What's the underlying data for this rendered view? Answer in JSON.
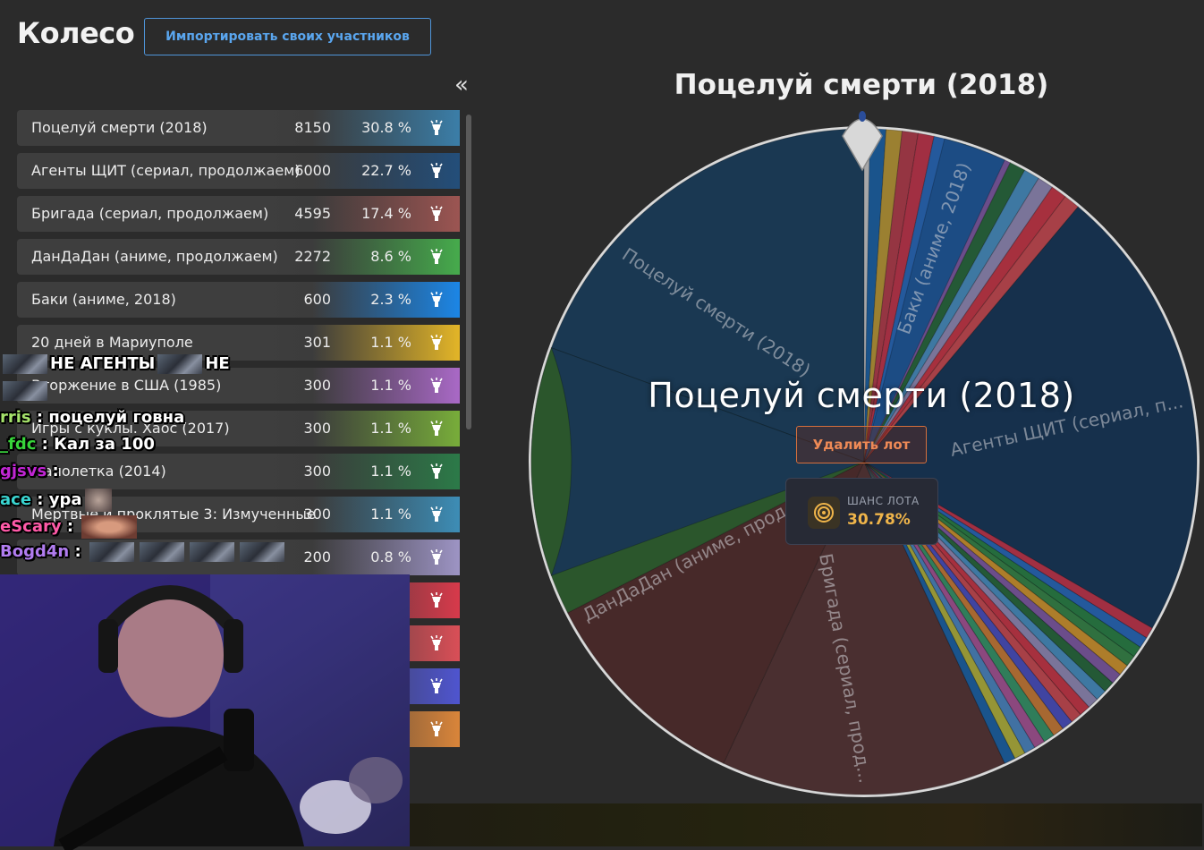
{
  "header": {
    "title": "Колесо",
    "import_label": "Импортировать своих участников",
    "collapse_icon": "«"
  },
  "lots": [
    {
      "name": "Поцелуй смерти (2018)",
      "amount": "8150",
      "percent": "30.8 %",
      "color": "#3b7ea8"
    },
    {
      "name": "Агенты ЩИТ (сериал, продолжаем)",
      "amount": "6000",
      "percent": "22.7 %",
      "color": "#234e7a"
    },
    {
      "name": "Бригада (сериал, продолжаем)",
      "amount": "4595",
      "percent": "17.4 %",
      "color": "#9c5552"
    },
    {
      "name": "ДанДаДан (аниме, продолжаем)",
      "amount": "2272",
      "percent": "8.6 %",
      "color": "#46ab4c"
    },
    {
      "name": "Баки (аниме, 2018)",
      "amount": "600",
      "percent": "2.3 %",
      "color": "#1c86e6"
    },
    {
      "name": "20 дней в Мариуполе",
      "amount": "301",
      "percent": "1.1 %",
      "color": "#e3b528"
    },
    {
      "name": "Вторжение в США (1985)",
      "amount": "300",
      "percent": "1.1 %",
      "color": "#a969c6"
    },
    {
      "name": "Игры с куклы. Хаос (2017)",
      "amount": "300",
      "percent": "1.1 %",
      "color": "#78ad3a"
    },
    {
      "name": "Малолетка (2014)",
      "amount": "300",
      "percent": "1.1 %",
      "color": "#2c7a48"
    },
    {
      "name": "Мертвые и проклятые 3: Измученные",
      "amount": "300",
      "percent": "1.1 %",
      "color": "#3d8db6"
    },
    {
      "name": "",
      "amount": "200",
      "percent": "0.8 %",
      "color": "#9d94c4"
    },
    {
      "name": "",
      "amount": "",
      "percent": "",
      "color": "#d73a4b"
    },
    {
      "name": "",
      "amount": "",
      "percent": "",
      "color": "#d94f57"
    },
    {
      "name": "",
      "amount": "",
      "percent": "",
      "color": "#4f55cf"
    },
    {
      "name": "",
      "amount": "",
      "percent": "",
      "color": "#d9853a"
    }
  ],
  "wheel": {
    "winner_title": "Поцелуй смерти (2018)",
    "center_label": "Поцелуй смерти (2018)",
    "delete_label": "Удалить лот",
    "chance_caption": "ШАНС ЛОТА",
    "chance_value": "30.78%",
    "segment_labels": {
      "a": "Поцелуй смерти (2018)",
      "b": "Агенты ЩИТ (сериал, п...",
      "c": "Бригада (сериал, прод...",
      "d": "ДанДаДан (аниме, прод...",
      "e": "Баки (аниме, 2018)"
    },
    "segments": [
      {
        "color": "#1e4a6e",
        "weight": 8150,
        "start": 0
      },
      {
        "color": "#173a5c",
        "weight": 6000,
        "start": 0
      },
      {
        "color": "#5d3a3a",
        "weight": 4595,
        "start": 0
      },
      {
        "color": "#336f35",
        "weight": 2272,
        "start": 0
      }
    ],
    "small_slices": [
      "#1c6ab3",
      "#c9a43a",
      "#c04050",
      "#d03850",
      "#2a70c8",
      "#2b8a4a",
      "#3a8f4d",
      "#e0a030",
      "#8860b0",
      "#2a7040",
      "#4d9ad0",
      "#9d94c4",
      "#d73a4b",
      "#d94f57",
      "#4f55cf",
      "#d9853a",
      "#3aa070",
      "#b35aa0",
      "#5090d0",
      "#c0c040"
    ]
  },
  "chat": [
    {
      "user": "",
      "user_color": "#ffffff",
      "text": "НЕ АГЕНТЫ",
      "after": "НЕ",
      "emotes": 2
    },
    {
      "user": "",
      "user_color": "#ffffff",
      "text": "",
      "after": "",
      "emotes": 1
    },
    {
      "user": "rris",
      "user_color": "#a6e36b",
      "text": "поцелуй говна",
      "after": "",
      "emotes": 0
    },
    {
      "user": "_fdc",
      "user_color": "#37d43a",
      "text": "Кал за 100",
      "after": "",
      "emotes": 0
    },
    {
      "user": "gjsvs",
      "user_color": "#c026d3",
      "text": "",
      "after": "",
      "emotes": 0
    },
    {
      "user": "ace",
      "user_color": "#3ad4d0",
      "text": "ура",
      "after": "",
      "emotes": 0
    },
    {
      "user": "eScary",
      "user_color": "#ff5aa8",
      "text": "",
      "after": "",
      "emotes": 0
    },
    {
      "user": "Bogd4n",
      "user_color": "#b17cf0",
      "text": "",
      "after": "",
      "emotes": 4
    }
  ]
}
